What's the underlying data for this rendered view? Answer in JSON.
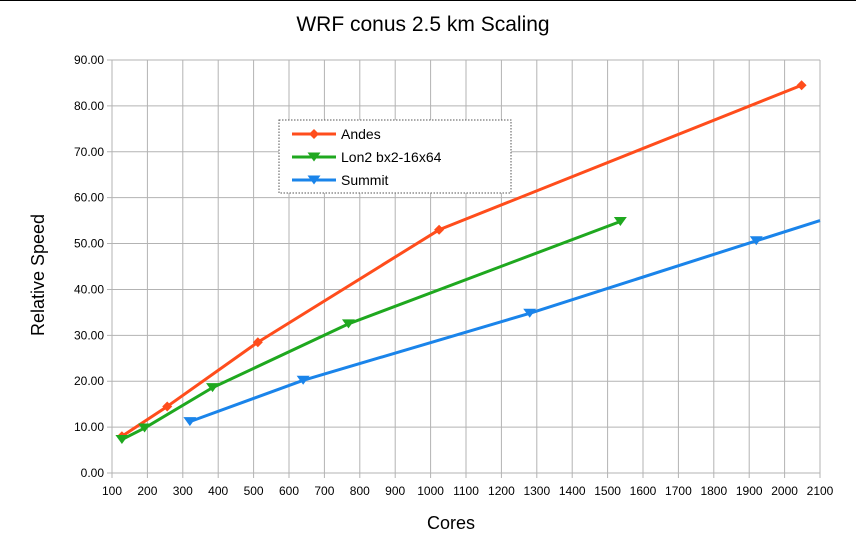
{
  "chart_data": {
    "type": "line",
    "title": "WRF conus 2.5 km Scaling",
    "xlabel": "Cores",
    "ylabel": "Relative Speed",
    "xlim": [
      100,
      2100
    ],
    "ylim": [
      0,
      90
    ],
    "x_ticks": [
      "100",
      "200",
      "300",
      "400",
      "500",
      "600",
      "700",
      "800",
      "900",
      "1000",
      "1100",
      "1200",
      "1300",
      "1400",
      "1500",
      "1600",
      "1700",
      "1800",
      "1900",
      "2000",
      "2100"
    ],
    "y_ticks": [
      "0.00",
      "10.00",
      "20.00",
      "30.00",
      "40.00",
      "50.00",
      "60.00",
      "70.00",
      "80.00",
      "90.00"
    ],
    "grid": true,
    "legend_position": "upper-center",
    "series": [
      {
        "name": "Andes",
        "color": "#ff4d1c",
        "marker": "diamond",
        "x": [
          128,
          256,
          512,
          1024,
          2048
        ],
        "y": [
          8.0,
          14.5,
          28.5,
          53.0,
          84.5
        ]
      },
      {
        "name": "Lon2 bx2-16x64",
        "color": "#1fa81f",
        "marker": "triangle-down",
        "x": [
          128,
          192,
          384,
          768,
          1536
        ],
        "y": [
          7.3,
          9.8,
          18.6,
          32.5,
          54.8
        ]
      },
      {
        "name": "Summit",
        "color": "#1a84ea",
        "marker": "triangle-down",
        "x": [
          320,
          640,
          1280,
          1920,
          2100
        ],
        "y": [
          11.2,
          20.2,
          34.8,
          50.6,
          55.0
        ],
        "marker_mask": [
          true,
          true,
          true,
          true,
          false
        ]
      }
    ]
  }
}
